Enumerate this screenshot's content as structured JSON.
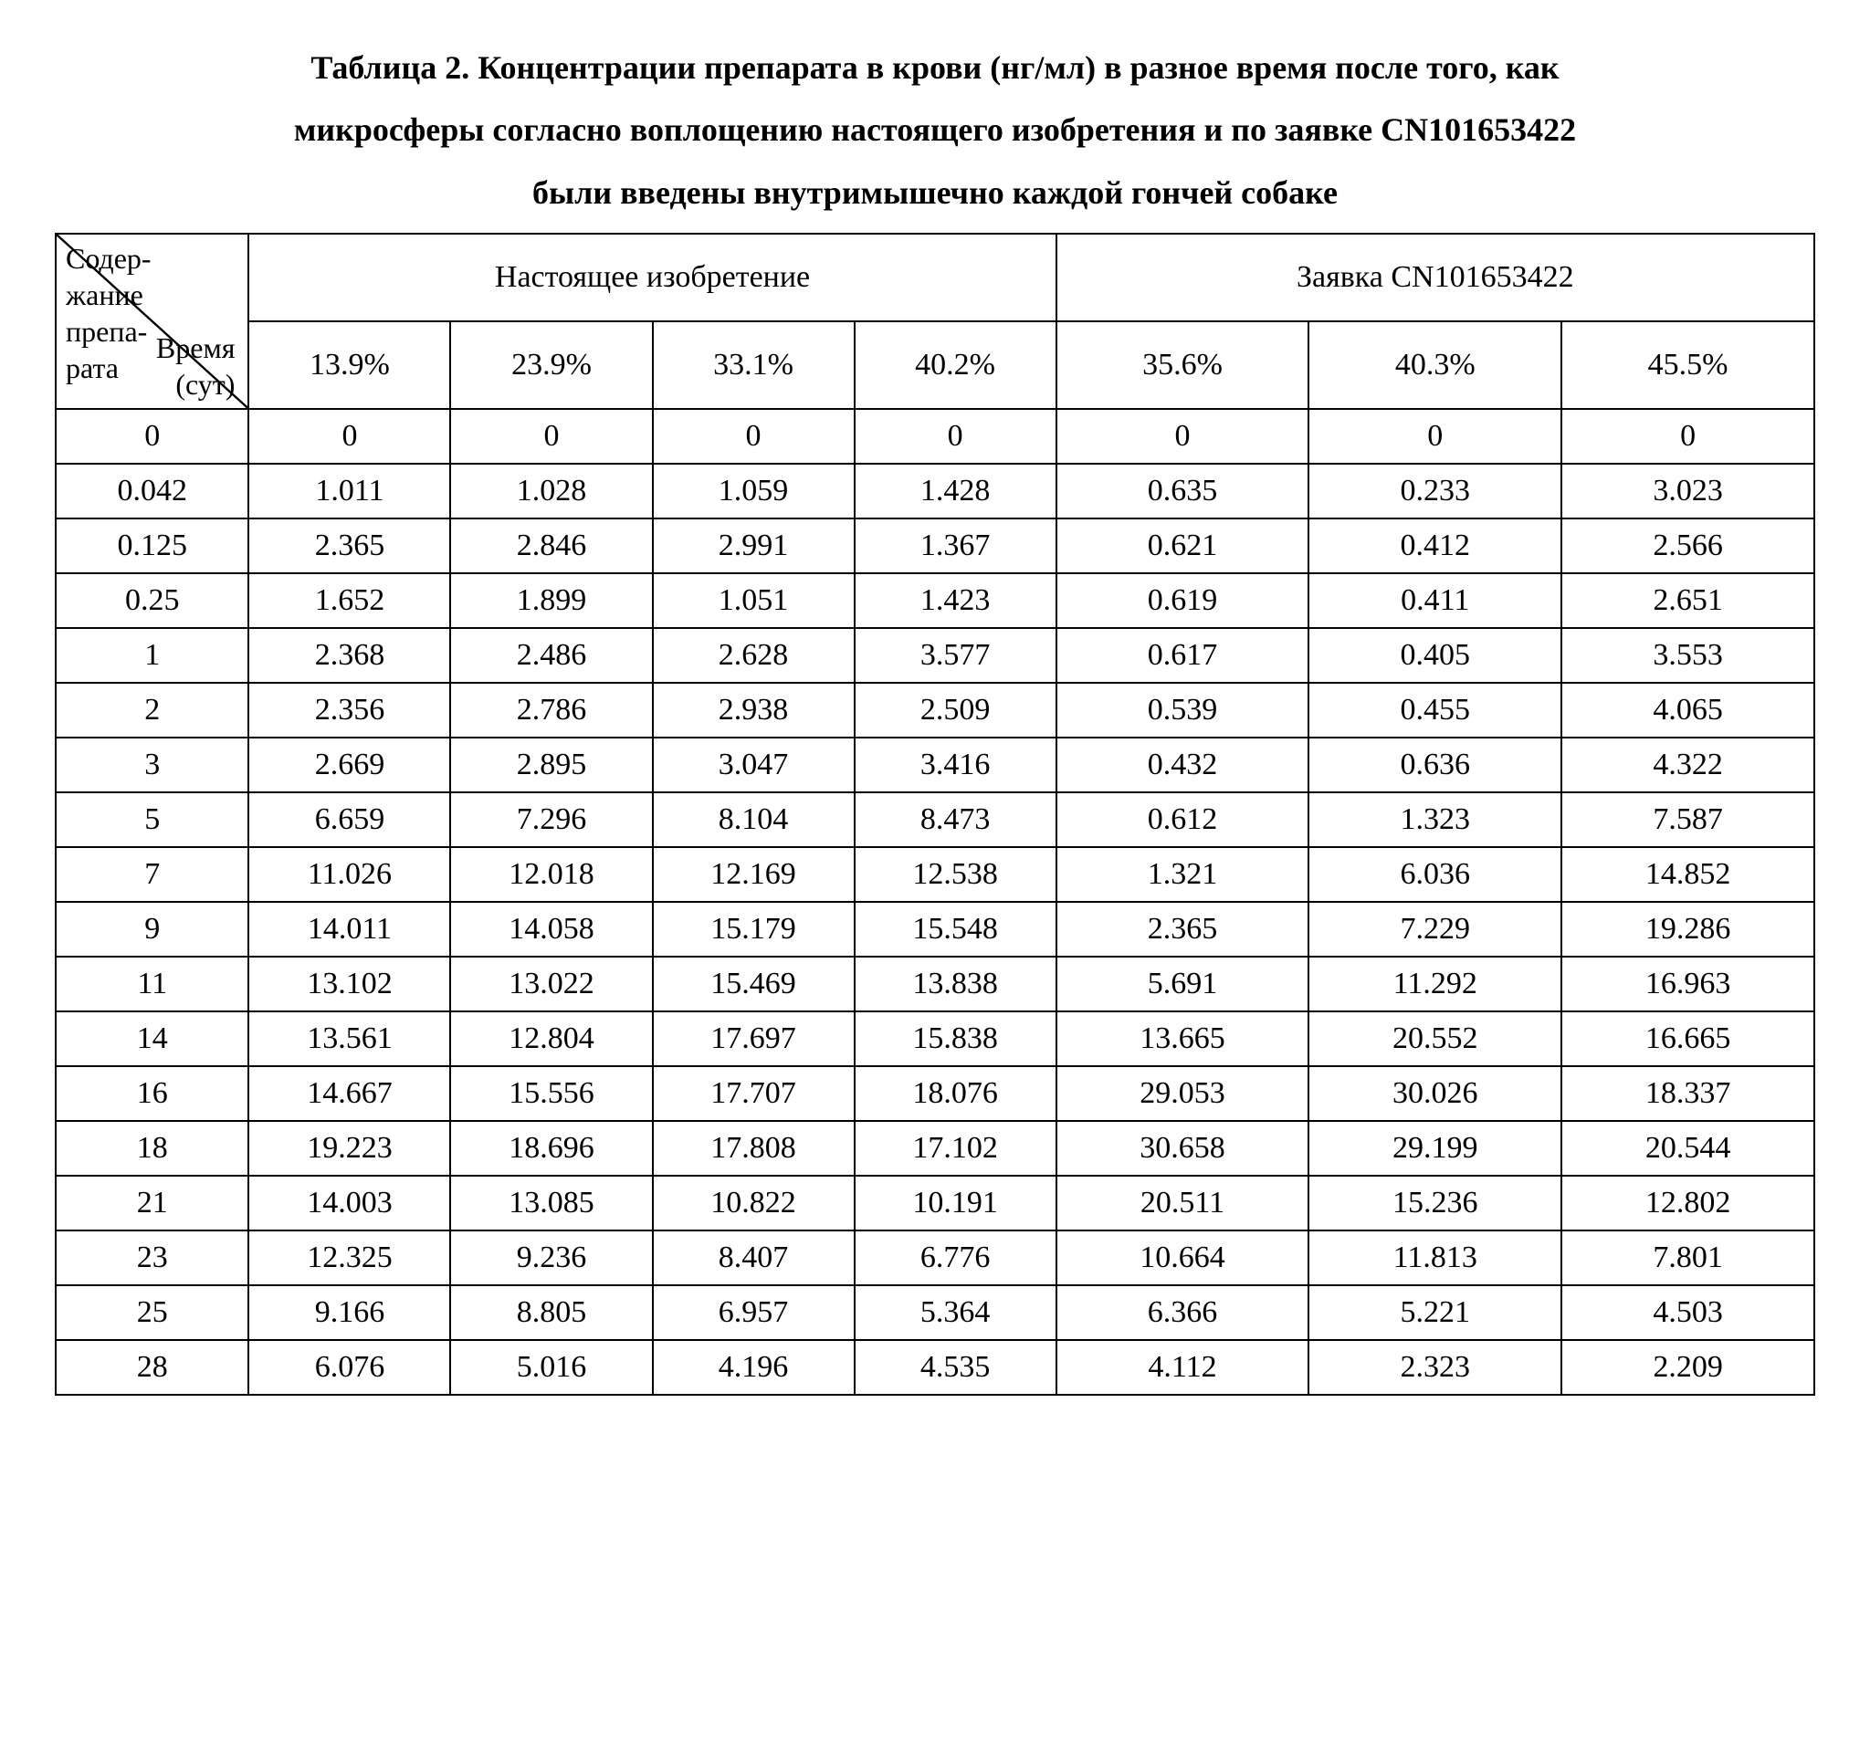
{
  "caption_lines": [
    "Таблица 2. Концентрации препарата в крови (нг/мл) в разное время после того, как",
    "микросферы согласно воплощению настоящего изобретения и по заявке CN101653422",
    "были введены внутримышечно каждой гончей собаке"
  ],
  "table": {
    "corner": {
      "top_label_line1": "Содер-",
      "top_label_line2": "жание",
      "top_label_line3": "препа-",
      "top_label_line4": "рата",
      "bottom_label_line1": "Время",
      "bottom_label_line2": "(сут)"
    },
    "group_a_label": "Настоящее изобретение",
    "group_b_label": "Заявка CN101653422",
    "group_a_pcts": [
      "13.9%",
      "23.9%",
      "33.1%",
      "40.2%"
    ],
    "group_b_pcts": [
      "35.6%",
      "40.3%",
      "45.5%"
    ],
    "rows": [
      {
        "t": "0",
        "a": [
          "0",
          "0",
          "0",
          "0"
        ],
        "b": [
          "0",
          "0",
          "0"
        ]
      },
      {
        "t": "0.042",
        "a": [
          "1.011",
          "1.028",
          "1.059",
          "1.428"
        ],
        "b": [
          "0.635",
          "0.233",
          "3.023"
        ]
      },
      {
        "t": "0.125",
        "a": [
          "2.365",
          "2.846",
          "2.991",
          "1.367"
        ],
        "b": [
          "0.621",
          "0.412",
          "2.566"
        ]
      },
      {
        "t": "0.25",
        "a": [
          "1.652",
          "1.899",
          "1.051",
          "1.423"
        ],
        "b": [
          "0.619",
          "0.411",
          "2.651"
        ]
      },
      {
        "t": "1",
        "a": [
          "2.368",
          "2.486",
          "2.628",
          "3.577"
        ],
        "b": [
          "0.617",
          "0.405",
          "3.553"
        ]
      },
      {
        "t": "2",
        "a": [
          "2.356",
          "2.786",
          "2.938",
          "2.509"
        ],
        "b": [
          "0.539",
          "0.455",
          "4.065"
        ]
      },
      {
        "t": "3",
        "a": [
          "2.669",
          "2.895",
          "3.047",
          "3.416"
        ],
        "b": [
          "0.432",
          "0.636",
          "4.322"
        ]
      },
      {
        "t": "5",
        "a": [
          "6.659",
          "7.296",
          "8.104",
          "8.473"
        ],
        "b": [
          "0.612",
          "1.323",
          "7.587"
        ]
      },
      {
        "t": "7",
        "a": [
          "11.026",
          "12.018",
          "12.169",
          "12.538"
        ],
        "b": [
          "1.321",
          "6.036",
          "14.852"
        ]
      },
      {
        "t": "9",
        "a": [
          "14.011",
          "14.058",
          "15.179",
          "15.548"
        ],
        "b": [
          "2.365",
          "7.229",
          "19.286"
        ]
      },
      {
        "t": "11",
        "a": [
          "13.102",
          "13.022",
          "15.469",
          "13.838"
        ],
        "b": [
          "5.691",
          "11.292",
          "16.963"
        ]
      },
      {
        "t": "14",
        "a": [
          "13.561",
          "12.804",
          "17.697",
          "15.838"
        ],
        "b": [
          "13.665",
          "20.552",
          "16.665"
        ]
      },
      {
        "t": "16",
        "a": [
          "14.667",
          "15.556",
          "17.707",
          "18.076"
        ],
        "b": [
          "29.053",
          "30.026",
          "18.337"
        ]
      },
      {
        "t": "18",
        "a": [
          "19.223",
          "18.696",
          "17.808",
          "17.102"
        ],
        "b": [
          "30.658",
          "29.199",
          "20.544"
        ]
      },
      {
        "t": "21",
        "a": [
          "14.003",
          "13.085",
          "10.822",
          "10.191"
        ],
        "b": [
          "20.511",
          "15.236",
          "12.802"
        ]
      },
      {
        "t": "23",
        "a": [
          "12.325",
          "9.236",
          "8.407",
          "6.776"
        ],
        "b": [
          "10.664",
          "11.813",
          "7.801"
        ]
      },
      {
        "t": "25",
        "a": [
          "9.166",
          "8.805",
          "6.957",
          "5.364"
        ],
        "b": [
          "6.366",
          "5.221",
          "4.503"
        ]
      },
      {
        "t": "28",
        "a": [
          "6.076",
          "5.016",
          "4.196",
          "4.535"
        ],
        "b": [
          "4.112",
          "2.323",
          "2.209"
        ]
      }
    ],
    "styling": {
      "border_color": "#000000",
      "background_color": "#ffffff",
      "font_family": "Times New Roman",
      "caption_fontsize_pt": 27,
      "cell_fontsize_pt": 25,
      "caption_bold": true
    }
  }
}
